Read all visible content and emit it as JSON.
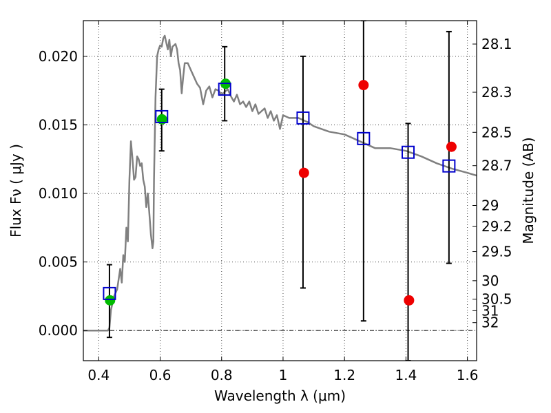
{
  "chart_data": {
    "type": "scatter",
    "xlabel": "Wavelength  λ (μm)",
    "ylabel": "Flux  Fν  ( μJy )",
    "y2label": "Magnitude (AB)",
    "xlim": [
      0.35,
      1.63
    ],
    "ylim": [
      -0.0022,
      0.0226
    ],
    "x_ticks": [
      0.4,
      0.6,
      0.8,
      1.0,
      1.2,
      1.4,
      1.6
    ],
    "x_tick_labels": [
      "0.4",
      "0.6",
      "0.8",
      "1",
      "1.2",
      "1.4",
      "1.6"
    ],
    "y_ticks": [
      0.0,
      0.005,
      0.01,
      0.015,
      0.02
    ],
    "y_tick_labels": [
      "0.000",
      "0.005",
      "0.010",
      "0.015",
      "0.020"
    ],
    "mag_ticks": [
      28.1,
      28.3,
      28.5,
      28.7,
      29,
      29.2,
      29.5,
      30,
      30.5,
      31,
      32
    ],
    "mag_tick_labels": [
      "28.1",
      "28.3",
      "28.5",
      "28.7",
      "29",
      "29.2",
      "29.5",
      "30",
      "30.5",
      "31",
      "32"
    ],
    "grid": true,
    "zero_line": true,
    "colors": {
      "model": "#808080",
      "model_points": "#0000cc",
      "detections": "#00bb00",
      "upper_limits": "#ee0000",
      "errorbars": "#000000"
    },
    "series": [
      {
        "type": "line",
        "x": [
          0.35,
          0.43,
          0.435,
          0.44,
          0.45,
          0.46,
          0.47,
          0.475,
          0.48,
          0.485,
          0.49,
          0.495,
          0.5,
          0.505,
          0.51,
          0.515,
          0.52,
          0.525,
          0.53,
          0.535,
          0.54,
          0.545,
          0.55,
          0.555,
          0.56,
          0.565,
          0.57,
          0.575,
          0.578,
          0.58,
          0.585,
          0.59,
          0.595,
          0.6,
          0.605,
          0.61,
          0.615,
          0.62,
          0.625,
          0.63,
          0.635,
          0.64,
          0.645,
          0.65,
          0.655,
          0.66,
          0.665,
          0.67,
          0.675,
          0.68,
          0.69,
          0.7,
          0.71,
          0.72,
          0.73,
          0.74,
          0.75,
          0.76,
          0.77,
          0.78,
          0.79,
          0.8,
          0.81,
          0.82,
          0.83,
          0.84,
          0.85,
          0.86,
          0.87,
          0.88,
          0.89,
          0.9,
          0.91,
          0.92,
          0.93,
          0.94,
          0.95,
          0.96,
          0.97,
          0.98,
          0.99,
          1.0,
          1.02,
          1.05,
          1.08,
          1.1,
          1.15,
          1.2,
          1.25,
          1.3,
          1.35,
          1.4,
          1.45,
          1.5,
          1.55,
          1.6,
          1.63
        ],
        "y": [
          0.0,
          0.0,
          0.0002,
          0.0015,
          0.0025,
          0.003,
          0.0045,
          0.0035,
          0.0055,
          0.005,
          0.0075,
          0.0065,
          0.011,
          0.0138,
          0.0125,
          0.011,
          0.0112,
          0.0127,
          0.0125,
          0.012,
          0.0122,
          0.011,
          0.0105,
          0.009,
          0.01,
          0.0085,
          0.007,
          0.006,
          0.0065,
          0.011,
          0.017,
          0.02,
          0.0205,
          0.0208,
          0.0207,
          0.0213,
          0.0215,
          0.021,
          0.0205,
          0.0212,
          0.02,
          0.0207,
          0.0208,
          0.0209,
          0.0205,
          0.0195,
          0.019,
          0.0173,
          0.0185,
          0.0195,
          0.0195,
          0.019,
          0.0185,
          0.018,
          0.0177,
          0.0165,
          0.0175,
          0.0178,
          0.017,
          0.0176,
          0.0175,
          0.0172,
          0.0174,
          0.0176,
          0.0171,
          0.0167,
          0.0172,
          0.0165,
          0.0167,
          0.0163,
          0.0167,
          0.016,
          0.0165,
          0.0158,
          0.016,
          0.0162,
          0.0155,
          0.016,
          0.0153,
          0.0157,
          0.0147,
          0.0157,
          0.0155,
          0.0155,
          0.0152,
          0.0149,
          0.0145,
          0.0143,
          0.0138,
          0.0133,
          0.0133,
          0.0131,
          0.0127,
          0.0122,
          0.0118,
          0.0115,
          0.0113
        ]
      },
      {
        "name": "",
        "type": "square",
        "x": [
          0.435,
          0.605,
          0.81,
          1.065,
          1.262,
          1.407,
          1.54
        ],
        "y": [
          0.0027,
          0.0156,
          0.0176,
          0.0155,
          0.014,
          0.013,
          0.012
        ]
      },
      {
        "name": "",
        "type": "circle",
        "x": [
          0.437,
          0.606,
          0.813
        ],
        "y": [
          0.0022,
          0.0154,
          0.018
        ]
      },
      {
        "name": "",
        "type": "circle",
        "x": [
          1.068,
          1.262,
          1.41,
          1.548
        ],
        "y": [
          0.0115,
          0.0179,
          0.0022,
          0.0134
        ]
      },
      {
        "name": "",
        "type": "errorbar",
        "x": [
          0.435,
          0.605,
          0.81,
          1.065,
          1.262,
          1.407,
          1.54
        ],
        "ylow": [
          -0.0005,
          0.0131,
          0.0153,
          0.0031,
          0.0007,
          -0.0022,
          0.0049
        ],
        "yhigh": [
          0.0048,
          0.0176,
          0.0207,
          0.02,
          0.0226,
          0.0151,
          0.0218
        ]
      }
    ]
  }
}
